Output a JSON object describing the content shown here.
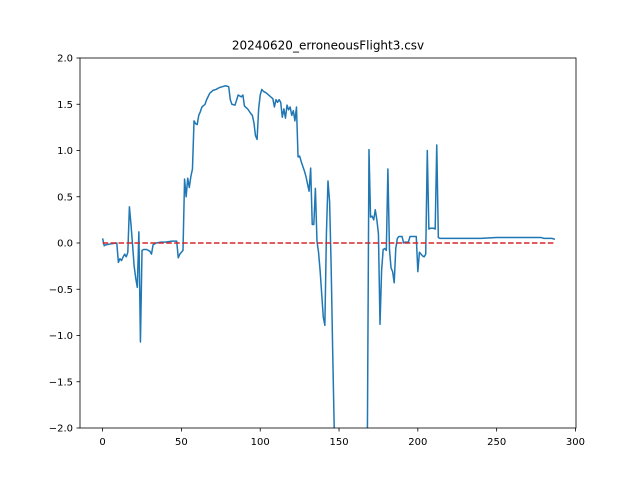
{
  "chart_data": {
    "type": "line",
    "title": "20240620_erroneousFlight3.csv",
    "xlabel": "",
    "ylabel": "",
    "xlim": [
      -14.35,
      300.35
    ],
    "ylim": [
      -2.0,
      2.0
    ],
    "xticks": [
      0,
      50,
      100,
      150,
      200,
      250,
      300
    ],
    "xtick_labels": [
      "0",
      "50",
      "100",
      "150",
      "200",
      "250",
      "300"
    ],
    "yticks": [
      -2.0,
      -1.5,
      -1.0,
      -0.5,
      0.0,
      0.5,
      1.0,
      1.5,
      2.0
    ],
    "ytick_labels": [
      "−2.0",
      "−1.5",
      "−1.0",
      "−0.5",
      "0.0",
      "0.5",
      "1.0",
      "1.5",
      "2.0"
    ],
    "grid": false,
    "series": [
      {
        "color": "#1f77b4",
        "style": "solid",
        "points": [
          [
            0,
            0.05
          ],
          [
            1,
            -0.03
          ],
          [
            2,
            -0.02
          ],
          [
            5,
            -0.01
          ],
          [
            9,
            0.0
          ],
          [
            10,
            -0.21
          ],
          [
            11,
            -0.17
          ],
          [
            12,
            -0.19
          ],
          [
            13,
            -0.15
          ],
          [
            14,
            -0.12
          ],
          [
            15,
            -0.15
          ],
          [
            16,
            -0.1
          ],
          [
            17,
            0.39
          ],
          [
            18,
            0.2
          ],
          [
            19,
            -0.02
          ],
          [
            20,
            -0.25
          ],
          [
            21,
            -0.38
          ],
          [
            22,
            -0.48
          ],
          [
            23,
            0.12
          ],
          [
            24,
            -1.07
          ],
          [
            25,
            -0.08
          ],
          [
            26,
            -0.07
          ],
          [
            28,
            -0.07
          ],
          [
            30,
            -0.09
          ],
          [
            31,
            -0.12
          ],
          [
            32,
            -0.02
          ],
          [
            34,
            0.0
          ],
          [
            37,
            0.01
          ],
          [
            40,
            0.01
          ],
          [
            44,
            0.02
          ],
          [
            47,
            0.02
          ],
          [
            48,
            -0.16
          ],
          [
            49,
            -0.12
          ],
          [
            50,
            -0.1
          ],
          [
            51,
            -0.08
          ],
          [
            52,
            0.69
          ],
          [
            53,
            0.5
          ],
          [
            54,
            0.7
          ],
          [
            55,
            0.6
          ],
          [
            56,
            0.72
          ],
          [
            57,
            0.8
          ],
          [
            58,
            1.32
          ],
          [
            59,
            1.29
          ],
          [
            60,
            1.28
          ],
          [
            61,
            1.38
          ],
          [
            62,
            1.42
          ],
          [
            63,
            1.47
          ],
          [
            65,
            1.5
          ],
          [
            66,
            1.55
          ],
          [
            68,
            1.62
          ],
          [
            70,
            1.65
          ],
          [
            72,
            1.66
          ],
          [
            74,
            1.68
          ],
          [
            76,
            1.69
          ],
          [
            78,
            1.7
          ],
          [
            80,
            1.69
          ],
          [
            81,
            1.55
          ],
          [
            82,
            1.5
          ],
          [
            84,
            1.49
          ],
          [
            86,
            1.6
          ],
          [
            88,
            1.58
          ],
          [
            89,
            1.6
          ],
          [
            90,
            1.48
          ],
          [
            92,
            1.45
          ],
          [
            94,
            1.4
          ],
          [
            95,
            1.38
          ],
          [
            96,
            1.3
          ],
          [
            97,
            1.16
          ],
          [
            98,
            1.12
          ],
          [
            99,
            1.45
          ],
          [
            100,
            1.6
          ],
          [
            101,
            1.66
          ],
          [
            102,
            1.64
          ],
          [
            104,
            1.62
          ],
          [
            106,
            1.59
          ],
          [
            108,
            1.56
          ],
          [
            109,
            1.47
          ],
          [
            110,
            1.55
          ],
          [
            111,
            1.52
          ],
          [
            112,
            1.55
          ],
          [
            113,
            1.52
          ],
          [
            114,
            1.36
          ],
          [
            115,
            1.45
          ],
          [
            116,
            1.35
          ],
          [
            117,
            1.49
          ],
          [
            118,
            1.44
          ],
          [
            119,
            1.47
          ],
          [
            120,
            1.38
          ],
          [
            121,
            1.43
          ],
          [
            122,
            1.32
          ],
          [
            123,
            1.47
          ],
          [
            124,
            0.93
          ],
          [
            125,
            0.94
          ],
          [
            126,
            0.88
          ],
          [
            127,
            0.83
          ],
          [
            128,
            0.78
          ],
          [
            129,
            0.72
          ],
          [
            130,
            0.64
          ],
          [
            131,
            0.56
          ],
          [
            132,
            0.81
          ],
          [
            133,
            0.2
          ],
          [
            134,
            0.2
          ],
          [
            135,
            0.59
          ],
          [
            136,
            0.02
          ],
          [
            137,
            -0.1
          ],
          [
            138,
            -0.3
          ],
          [
            139,
            -0.55
          ],
          [
            140,
            -0.8
          ],
          [
            141,
            -0.89
          ],
          [
            142,
            0.1
          ],
          [
            143,
            0.67
          ],
          [
            144,
            0.45
          ],
          [
            145,
            -0.25
          ],
          [
            146,
            -1.2
          ],
          [
            147,
            -2.05
          ],
          [
            168,
            -2.05
          ],
          [
            169,
            1.01
          ],
          [
            170,
            0.28
          ],
          [
            171,
            0.29
          ],
          [
            172,
            0.25
          ],
          [
            173,
            0.36
          ],
          [
            174,
            0.25
          ],
          [
            175,
            0.1
          ],
          [
            176,
            -0.88
          ],
          [
            177,
            -0.3
          ],
          [
            178,
            -0.07
          ],
          [
            179,
            -0.06
          ],
          [
            180,
            -0.08
          ],
          [
            181,
            0.8
          ],
          [
            182,
            -0.07
          ],
          [
            183,
            -0.27
          ],
          [
            184,
            -0.31
          ],
          [
            185,
            -0.43
          ],
          [
            186,
            -0.06
          ],
          [
            187,
            0.05
          ],
          [
            188,
            0.07
          ],
          [
            189,
            0.07
          ],
          [
            190,
            0.07
          ],
          [
            191,
            0.0
          ],
          [
            192,
            0.01
          ],
          [
            193,
            0.01
          ],
          [
            194,
            0.01
          ],
          [
            195,
            0.07
          ],
          [
            197,
            0.07
          ],
          [
            199,
            0.07
          ],
          [
            200,
            -0.31
          ],
          [
            201,
            -0.1
          ],
          [
            202,
            -0.12
          ],
          [
            203,
            -0.14
          ],
          [
            204,
            -0.15
          ],
          [
            205,
            -0.12
          ],
          [
            206,
            1.0
          ],
          [
            207,
            0.15
          ],
          [
            208,
            0.16
          ],
          [
            210,
            0.16
          ],
          [
            211,
            0.15
          ],
          [
            212,
            1.06
          ],
          [
            213,
            0.06
          ],
          [
            214,
            0.05
          ],
          [
            220,
            0.05
          ],
          [
            240,
            0.05
          ],
          [
            250,
            0.06
          ],
          [
            260,
            0.06
          ],
          [
            270,
            0.06
          ],
          [
            278,
            0.06
          ],
          [
            280,
            0.05
          ],
          [
            285,
            0.05
          ],
          [
            287,
            0.04
          ]
        ]
      },
      {
        "color": "#d62728",
        "style": "dashed",
        "points": [
          [
            0,
            0.0
          ],
          [
            287,
            0.0
          ]
        ]
      }
    ]
  }
}
